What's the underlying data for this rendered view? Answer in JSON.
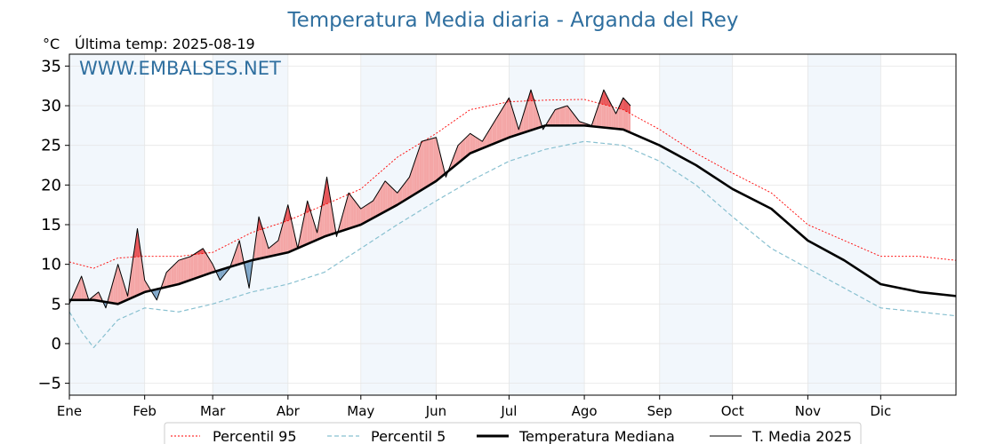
{
  "chart_data": {
    "type": "line",
    "title": "Temperatura Media diaria - Arganda del Rey",
    "unit_label": "°C",
    "subtitle": "Última temp: 2025-08-19",
    "watermark": "WWW.EMBALSES.NET",
    "ylim": [
      -6.5,
      36.5
    ],
    "yticks": [
      -5,
      0,
      5,
      10,
      15,
      20,
      25,
      30,
      35
    ],
    "xlim": [
      0,
      365
    ],
    "months": [
      "Ene",
      "Feb",
      "Mar",
      "Abr",
      "May",
      "Jun",
      "Jul",
      "Ago",
      "Sep",
      "Oct",
      "Nov",
      "Dic"
    ],
    "month_starts": [
      0,
      31,
      59,
      90,
      120,
      151,
      181,
      212,
      243,
      273,
      304,
      334
    ],
    "grid": true,
    "legend_position": "bottom-center",
    "colors": {
      "p95": "#ff0000",
      "p5": "#88c0d0",
      "median": "#000000",
      "current": "#000000",
      "above_fill": "#f4a6a6",
      "above_p95_fill": "#e8575a",
      "below_fill": "#7fa7c9",
      "shade": "#f2f7fc"
    },
    "series": [
      {
        "key": "p95",
        "name": "Percentil 95",
        "x": [
          0,
          10,
          20,
          31,
          45,
          59,
          75,
          90,
          105,
          120,
          135,
          151,
          165,
          181,
          196,
          212,
          228,
          243,
          258,
          273,
          289,
          304,
          319,
          334,
          350,
          365
        ],
        "y": [
          10.3,
          9.5,
          10.8,
          11,
          11,
          11.5,
          14,
          15.5,
          17.5,
          19.5,
          23.5,
          26.5,
          29.5,
          30.5,
          30.7,
          30.8,
          29.5,
          27,
          24,
          21.5,
          19,
          15,
          13,
          11,
          11,
          10.5
        ]
      },
      {
        "key": "p5",
        "name": "Percentil 5",
        "x": [
          0,
          5,
          10,
          20,
          31,
          45,
          59,
          75,
          90,
          105,
          120,
          135,
          151,
          165,
          181,
          196,
          212,
          228,
          243,
          258,
          273,
          289,
          304,
          319,
          334,
          350,
          365
        ],
        "y": [
          4,
          1.5,
          -0.5,
          3,
          4.5,
          4,
          5,
          6.5,
          7.5,
          9,
          12,
          15,
          18,
          20.5,
          23,
          24.5,
          25.5,
          25,
          23,
          20,
          16,
          12,
          9.5,
          7,
          4.5,
          4,
          3.5
        ]
      },
      {
        "key": "median",
        "name": "Temperatura Mediana",
        "x": [
          0,
          10,
          20,
          31,
          45,
          59,
          75,
          90,
          105,
          120,
          135,
          151,
          165,
          181,
          196,
          212,
          228,
          243,
          258,
          273,
          289,
          304,
          319,
          334,
          350,
          365
        ],
        "y": [
          5.5,
          5.5,
          5,
          6.5,
          7.5,
          9,
          10.5,
          11.5,
          13.5,
          15,
          17.5,
          20.5,
          24,
          26,
          27.5,
          27.5,
          27,
          25,
          22.5,
          19.5,
          17,
          13,
          10.5,
          7.5,
          6.5,
          6
        ]
      },
      {
        "key": "current",
        "name": "T. Media 2025",
        "x": [
          0,
          5,
          8,
          12,
          15,
          20,
          24,
          28,
          31,
          36,
          40,
          45,
          50,
          55,
          59,
          62,
          66,
          70,
          74,
          78,
          82,
          86,
          90,
          94,
          98,
          102,
          106,
          110,
          115,
          120,
          125,
          130,
          135,
          140,
          145,
          151,
          155,
          160,
          165,
          170,
          175,
          181,
          185,
          190,
          195,
          200,
          205,
          210,
          215,
          220,
          225,
          228,
          231
        ],
        "y": [
          5,
          8.5,
          5.5,
          6.5,
          4.5,
          10,
          6,
          14.5,
          8,
          5.5,
          9,
          10.5,
          11,
          12,
          10,
          8,
          9.5,
          13,
          7,
          16,
          12,
          13,
          17.5,
          12,
          18,
          14,
          21,
          13.5,
          19,
          17,
          18,
          20.5,
          19,
          21,
          25.5,
          26,
          21,
          25,
          26.5,
          25.5,
          28,
          31,
          27,
          32,
          27,
          29.5,
          30,
          28,
          27.5,
          32,
          29,
          31,
          30
        ]
      }
    ],
    "bottom_tick_labels": [
      "Ene",
      "Feb",
      "Mar",
      "Abr",
      "May",
      "Jun",
      "Jul",
      "Ago",
      "Sep",
      "Oct",
      "Nov",
      "Dic"
    ]
  },
  "legend": {
    "p95": "Percentil 95",
    "p5": "Percentil 5",
    "median": "Temperatura Mediana",
    "current": "T. Media 2025"
  }
}
